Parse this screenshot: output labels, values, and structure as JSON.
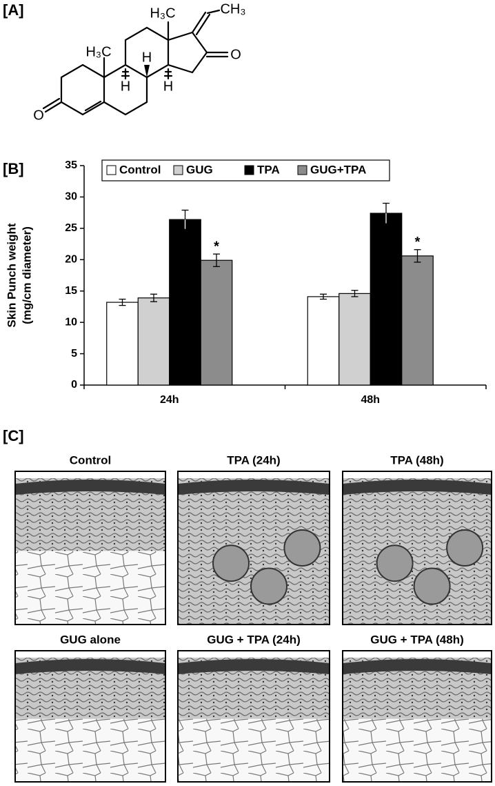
{
  "panels": {
    "a": "[A]",
    "b": "[B]",
    "c": "[C]"
  },
  "structure": {
    "labels": [
      "H₃C",
      "H₃C",
      "CH₃",
      "H",
      "H",
      "H",
      "O",
      "O"
    ]
  },
  "chart_data": {
    "type": "bar",
    "y_label": [
      "Skin Punch weight",
      "(mg/cm diameter)"
    ],
    "categories": [
      "24h",
      "48h"
    ],
    "series": [
      {
        "name": "Control",
        "color": "#ffffff",
        "values": [
          13.2,
          14.1
        ],
        "errors": [
          0.5,
          0.4
        ]
      },
      {
        "name": "GUG",
        "color": "#d0d0d0",
        "values": [
          13.9,
          14.6
        ],
        "errors": [
          0.6,
          0.5
        ]
      },
      {
        "name": "TPA",
        "color": "#000000",
        "values": [
          26.4,
          27.4
        ],
        "errors": [
          1.5,
          1.6
        ]
      },
      {
        "name": "GUG+TPA",
        "color": "#8c8c8c",
        "values": [
          19.9,
          20.6
        ],
        "errors": [
          1.0,
          1.0
        ]
      }
    ],
    "annotations": [
      "*",
      "*"
    ],
    "ylim": [
      0,
      35
    ],
    "yticks": [
      0,
      5,
      10,
      15,
      20,
      25,
      30,
      35
    ],
    "legend": "top"
  },
  "micrographs": {
    "captions": [
      "Control",
      "TPA (24h)",
      "TPA (48h)",
      "GUG alone",
      "GUG + TPA (24h)",
      "GUG + TPA (48h)"
    ]
  }
}
